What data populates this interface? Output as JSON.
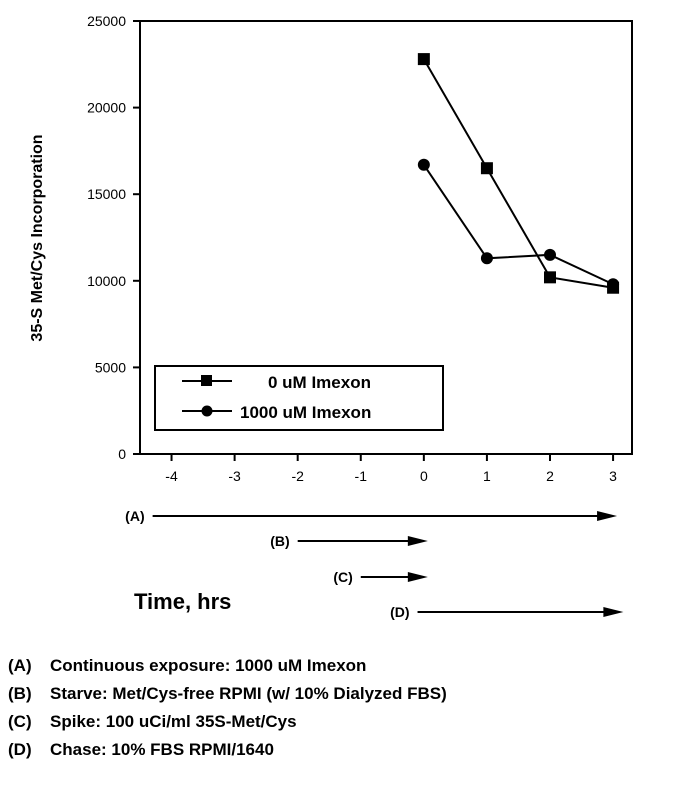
{
  "chart_data": {
    "type": "line",
    "title": "",
    "ylabel": "35-S Met/Cys Incorporation",
    "xlabel": "Time, hrs",
    "xlim": [
      -4.5,
      3.3
    ],
    "ylim": [
      0,
      25000
    ],
    "x_ticks": [
      -4,
      -3,
      -2,
      -1,
      0,
      1,
      2,
      3
    ],
    "y_ticks": [
      0,
      5000,
      10000,
      15000,
      20000,
      25000
    ],
    "x_tick_labels": [
      "-4",
      "-3",
      "-2",
      "-1",
      "0",
      "1",
      "2",
      "3"
    ],
    "y_tick_labels": [
      "0",
      "5000",
      "10000",
      "15000",
      "20000",
      "25000"
    ],
    "grid": false,
    "legend_position": "bottom-left",
    "series": [
      {
        "name": "0 uM Imexon",
        "marker": "square",
        "x": [
          0,
          1,
          2,
          3
        ],
        "y": [
          22800,
          16500,
          10200,
          9600
        ]
      },
      {
        "name": "1000 uM Imexon",
        "marker": "circle",
        "x": [
          0,
          1,
          2,
          3
        ],
        "y": [
          16700,
          11300,
          11500,
          9800
        ]
      }
    ],
    "timeline": [
      {
        "label": "(A)",
        "start": -4.3,
        "end": 3.0
      },
      {
        "label": "(B)",
        "start": -2.0,
        "end": 0.0
      },
      {
        "label": "(C)",
        "start": -1.0,
        "end": 0.0
      },
      {
        "label": "(D)",
        "start": -0.1,
        "end": 3.1
      }
    ]
  },
  "notes": [
    {
      "key": "(A)",
      "text": "Continuous exposure:  1000 uM Imexon"
    },
    {
      "key": "(B)",
      "text": "Starve:       Met/Cys-free RPMI (w/ 10% Dialyzed FBS)"
    },
    {
      "key": "(C)",
      "text": "Spike:         100 uCi/ml 35S-Met/Cys"
    },
    {
      "key": "(D)",
      "text": "Chase:        10% FBS RPMI/1640"
    }
  ]
}
